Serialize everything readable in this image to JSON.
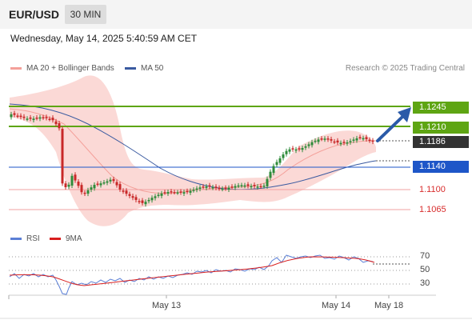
{
  "header": {
    "symbol": "EUR/USD",
    "timeframe": "30 MIN"
  },
  "datetime": "Wednesday, May 14, 2025 5:40:59 AM CET",
  "legend": {
    "items": [
      {
        "label": "MA 20 + Bollinger Bands",
        "color": "#f4a09a"
      },
      {
        "label": "MA 50",
        "color": "#3a5aa0"
      }
    ],
    "credit": "Research © 2025 Trading Central"
  },
  "levels": [
    {
      "value": "1.1245",
      "color": "#5ea513",
      "style": "filled"
    },
    {
      "value": "1.1210",
      "color": "#5ea513",
      "style": "filled"
    },
    {
      "value": "1.1186",
      "color": "#333333",
      "style": "current"
    },
    {
      "value": "1.1140",
      "color": "#1e56c8",
      "style": "filled"
    },
    {
      "value": "1.1100",
      "color": "#d82c2c",
      "style": "text"
    },
    {
      "value": "1.1065",
      "color": "#d82c2c",
      "style": "text"
    }
  ],
  "rsi_legend": {
    "items": [
      {
        "label": "RSI",
        "color": "#5b7fd6"
      },
      {
        "label": "9MA",
        "color": "#d81e1e"
      }
    ]
  },
  "rsi_ticks": [
    "70",
    "50",
    "30"
  ],
  "xaxis": {
    "labels": [
      "May 13",
      "May 14",
      "May 18"
    ]
  },
  "colors": {
    "candle_up": "#2e8b3a",
    "candle_down": "#c82828",
    "band_fill": "#fbd9d6"
  }
}
